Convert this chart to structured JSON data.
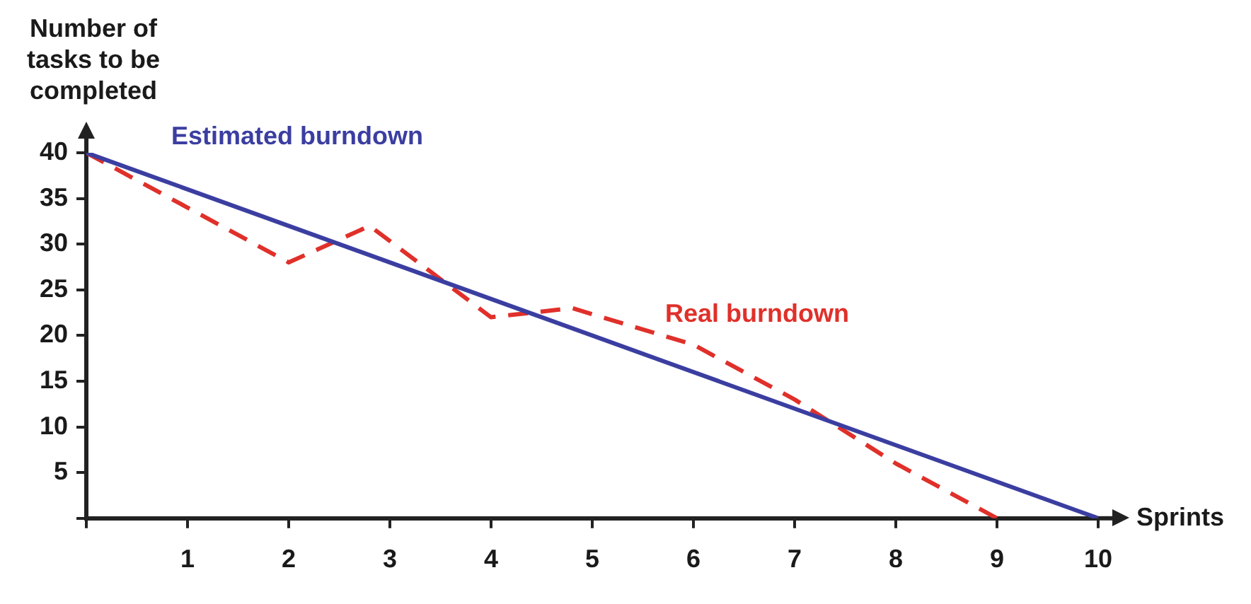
{
  "chart_data": {
    "type": "line",
    "xlabel": "Sprints",
    "ylabel": "Number of\ntasks to be\ncompleted",
    "xlim": [
      0,
      10
    ],
    "ylim": [
      0,
      40
    ],
    "xticks": [
      {
        "value": 0,
        "label": null
      },
      1,
      2,
      3,
      4,
      5,
      6,
      7,
      8,
      9,
      10
    ],
    "yticks": [
      {
        "value": 0,
        "label": null
      },
      5,
      10,
      15,
      20,
      25,
      30,
      35,
      40
    ],
    "grid": false,
    "legend": false,
    "marker": "none",
    "series": [
      {
        "name": "Estimated burndown",
        "color": "#3b3ea0",
        "line_style": "solid",
        "x": [
          0,
          10
        ],
        "values": [
          40,
          0
        ]
      },
      {
        "name": "Real burndown",
        "color": "#e0302a",
        "line_style": "dashed",
        "x": [
          0,
          1,
          2,
          2.8,
          4,
          4.8,
          6,
          7,
          8,
          9
        ],
        "values": [
          40,
          34,
          28,
          32,
          22,
          23,
          19,
          13,
          6,
          0
        ]
      }
    ]
  }
}
